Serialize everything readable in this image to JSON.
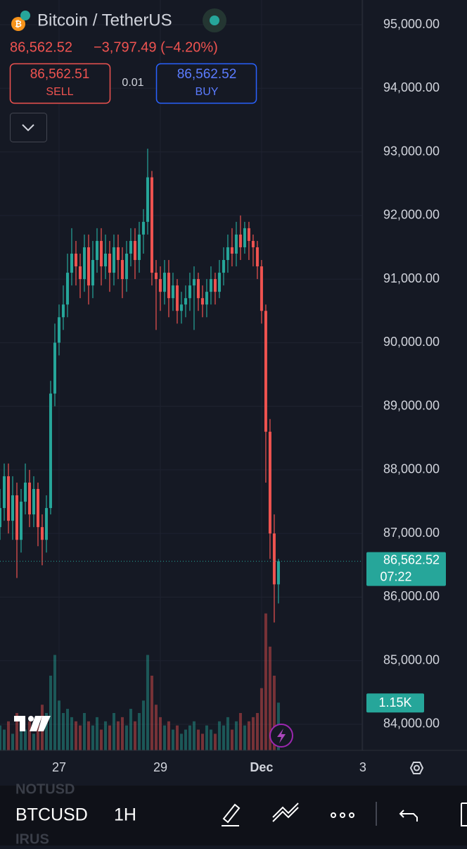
{
  "header": {
    "title": "Bitcoin / TetherUS",
    "price": "86,562.52",
    "change": "−3,797.49 (−4.20%)",
    "sell_price": "86,562.51",
    "sell_label": "SELL",
    "spread": "0.01",
    "buy_price": "86,562.52",
    "buy_label": "BUY"
  },
  "chart_data": {
    "type": "candlestick",
    "up_color": "#26a69a",
    "down_color": "#ef5350",
    "grid": true,
    "x": [
      -28,
      -26,
      -24,
      -22,
      -20,
      -18,
      -16,
      -14,
      -12,
      -10,
      -8,
      -6,
      -4,
      -2,
      0,
      2,
      4,
      6,
      8,
      10,
      12,
      14,
      16,
      18,
      20,
      22,
      24,
      26,
      28,
      30,
      32,
      34,
      36,
      38,
      40,
      42,
      44,
      46,
      48,
      50,
      52,
      54,
      56,
      58,
      60,
      62,
      64,
      66,
      68,
      70,
      72,
      74,
      76,
      78,
      80,
      82,
      84,
      86,
      88,
      90,
      92,
      94,
      96,
      98,
      100,
      102,
      104
    ],
    "open": [
      87100,
      87400,
      87900,
      87200,
      87600,
      86900,
      87500,
      87800,
      87300,
      87700,
      87100,
      86900,
      87400,
      89200,
      90000,
      90400,
      90600,
      91100,
      91400,
      91200,
      91000,
      91500,
      90900,
      91300,
      91600,
      91200,
      91400,
      91100,
      91500,
      91300,
      91000,
      91400,
      91600,
      91300,
      91700,
      91900,
      92600,
      91100,
      91000,
      90800,
      91100,
      90700,
      90900,
      90500,
      90600,
      90700,
      90900,
      91000,
      90700,
      90600,
      90800,
      91000,
      90800,
      91100,
      91300,
      91500,
      91400,
      91700,
      91500,
      91800,
      91600,
      91500,
      91200,
      90500,
      88600,
      87000,
      86200
    ],
    "high": [
      87700,
      88100,
      88100,
      87900,
      87800,
      87700,
      88100,
      88000,
      87900,
      87800,
      87300,
      87600,
      89400,
      90300,
      90600,
      90900,
      91400,
      91800,
      91600,
      91400,
      91700,
      91700,
      91600,
      91800,
      91800,
      91700,
      91600,
      91700,
      91700,
      91500,
      91600,
      91800,
      91800,
      91900,
      92100,
      93050,
      92700,
      91300,
      91200,
      91300,
      91300,
      91100,
      91000,
      90800,
      90900,
      91100,
      91200,
      91100,
      90900,
      91000,
      91200,
      91100,
      91300,
      91500,
      91700,
      91800,
      91900,
      92000,
      91900,
      91900,
      91700,
      91600,
      91300,
      90600,
      88800,
      87300,
      86600
    ],
    "low": [
      86900,
      87200,
      87000,
      86900,
      86300,
      86700,
      87300,
      87100,
      87100,
      86800,
      86500,
      86700,
      87300,
      89000,
      89800,
      90200,
      90400,
      90900,
      90900,
      90700,
      90800,
      90600,
      90700,
      91100,
      90900,
      91000,
      90800,
      90900,
      91000,
      90700,
      90800,
      91200,
      91000,
      91100,
      91400,
      91700,
      90900,
      90200,
      90500,
      90600,
      90400,
      90500,
      90300,
      90300,
      90400,
      90500,
      90200,
      90500,
      90400,
      90400,
      90600,
      90600,
      90700,
      90900,
      91100,
      91200,
      91200,
      91300,
      91400,
      91300,
      91200,
      91000,
      90300,
      87800,
      86600,
      85600,
      85900
    ],
    "close": [
      87400,
      87900,
      87200,
      87600,
      86900,
      87500,
      87800,
      87300,
      87700,
      87100,
      86900,
      87400,
      89200,
      90000,
      90400,
      90600,
      91100,
      91400,
      91200,
      91000,
      91500,
      90900,
      91300,
      91600,
      91200,
      91400,
      91100,
      91500,
      91300,
      91000,
      91400,
      91600,
      91300,
      91700,
      91900,
      92600,
      91100,
      91000,
      90800,
      91100,
      90700,
      90900,
      90500,
      90600,
      90700,
      90900,
      91000,
      90700,
      90600,
      90800,
      91000,
      90800,
      91100,
      91300,
      91500,
      91400,
      91700,
      91500,
      91800,
      91600,
      91500,
      91200,
      90500,
      88600,
      87000,
      86200,
      86562.52
    ],
    "volume": [
      600,
      500,
      700,
      400,
      900,
      600,
      500,
      700,
      400,
      800,
      1100,
      900,
      1800,
      2300,
      1200,
      900,
      1000,
      800,
      700,
      600,
      900,
      700,
      600,
      800,
      500,
      700,
      600,
      900,
      700,
      800,
      600,
      1000,
      700,
      900,
      1200,
      2300,
      1800,
      1100,
      800,
      600,
      700,
      500,
      600,
      400,
      500,
      600,
      700,
      500,
      400,
      600,
      500,
      400,
      700,
      600,
      800,
      500,
      700,
      900,
      600,
      700,
      800,
      900,
      1500,
      3300,
      2500,
      1800,
      1150
    ],
    "volume_lim": [
      0,
      3600
    ],
    "volume_last_label": "1.15K",
    "last_price_label": "86,562.52",
    "countdown": "07:22",
    "xlim": [
      -28,
      143.7
    ],
    "ylim": [
      83590,
      95388
    ],
    "xticks": [
      {
        "value": 0,
        "label": "27"
      },
      {
        "value": 48,
        "label": "29"
      },
      {
        "value": 96,
        "label": "Dec"
      },
      {
        "value": 144,
        "label": "3"
      }
    ],
    "yticks": [
      {
        "value": 84000,
        "label": "84,000.00"
      },
      {
        "value": 85000,
        "label": "85,000.00"
      },
      {
        "value": 86000,
        "label": "86,000.00"
      },
      {
        "value": 87000,
        "label": "87,000.00"
      },
      {
        "value": 88000,
        "label": "88,000.00"
      },
      {
        "value": 89000,
        "label": "89,000.00"
      },
      {
        "value": 90000,
        "label": "90,000.00"
      },
      {
        "value": 91000,
        "label": "91,000.00"
      },
      {
        "value": 92000,
        "label": "92,000.00"
      },
      {
        "value": 93000,
        "label": "93,000.00"
      },
      {
        "value": 94000,
        "label": "94,000.00"
      },
      {
        "value": 95000,
        "label": "95,000.00"
      }
    ]
  },
  "toolbar": {
    "symbol": "BTCUSD",
    "interval": "1H",
    "ghost_top": "NOTUSD",
    "ghost_bottom": "IRUS"
  }
}
